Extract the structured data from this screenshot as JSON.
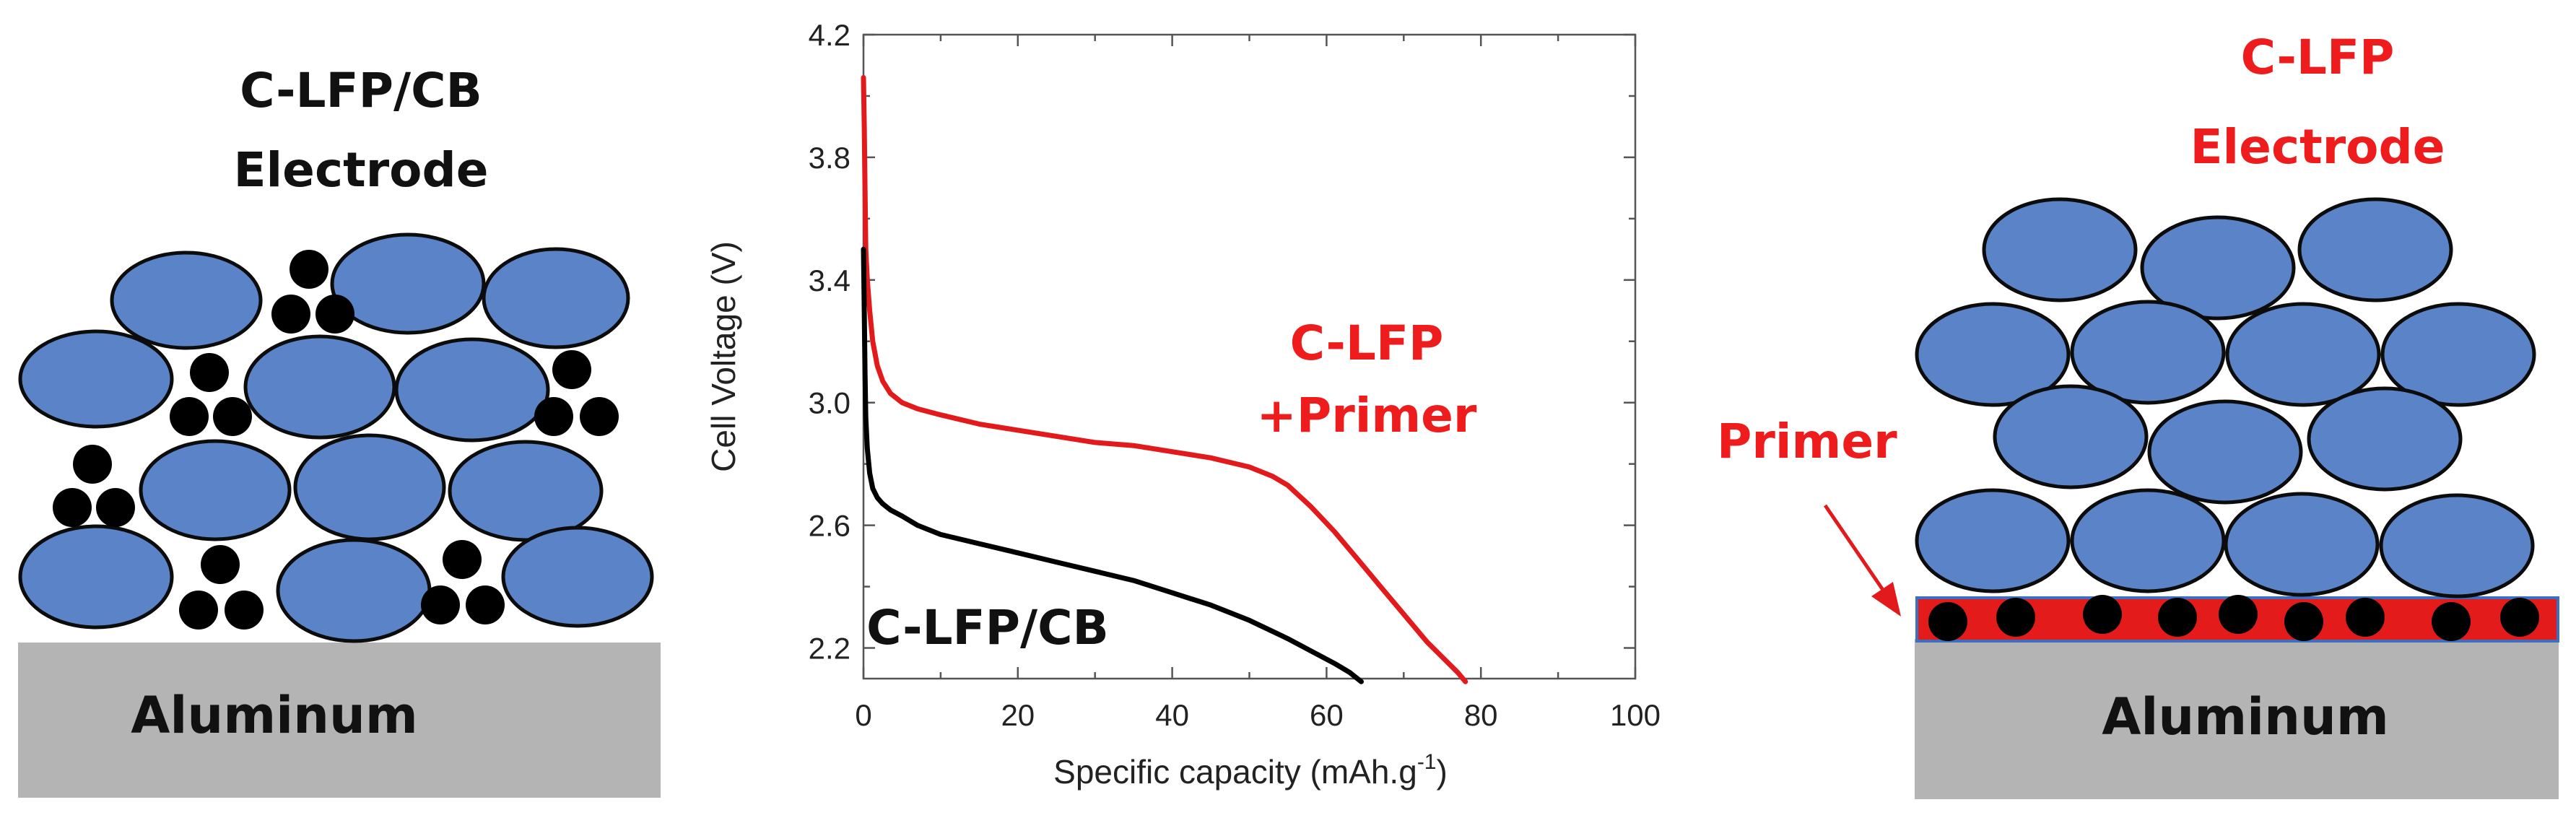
{
  "left_panel": {
    "title_line1": "C-LFP/CB",
    "title_line2": "Electrode",
    "substrate_label": "Aluminum"
  },
  "right_panel": {
    "title_line1": "C-LFP",
    "title_line2": "Electrode",
    "primer_label": "Primer",
    "substrate_label": "Aluminum"
  },
  "colors": {
    "particle_fill": "#5b84c8",
    "carbon_black": "#000000",
    "aluminum": "#b4b4b4",
    "primer": "#e41b1b",
    "series_red": "#e31a1c",
    "series_black": "#000000",
    "label_red": "#ee1c1c"
  },
  "chart_data": {
    "type": "line",
    "xlabel": "Specific capacity (mAh.g",
    "xlabel_sup": "-1",
    "xlabel_end": ")",
    "ylabel": "Cell Voltage (V)",
    "xlim": [
      0,
      100
    ],
    "ylim": [
      2.1,
      4.2
    ],
    "xticks": [
      0,
      20,
      40,
      60,
      80,
      100
    ],
    "yticks": [
      2.2,
      2.6,
      3.0,
      3.4,
      3.8,
      4.2
    ],
    "xtick_labels": [
      "0",
      "20",
      "40",
      "60",
      "80",
      "100"
    ],
    "ytick_labels": [
      "2.2",
      "2.6",
      "3.0",
      "3.4",
      "3.8",
      "4.2"
    ],
    "grid": false,
    "series": [
      {
        "name": "C-LFP +Primer",
        "label_line1": "C-LFP",
        "label_line2": "+Primer",
        "color": "#e31a1c",
        "x": [
          0,
          0.1,
          0.2,
          0.3,
          0.5,
          0.8,
          1.2,
          1.8,
          2.5,
          3.5,
          5,
          7,
          10,
          15,
          20,
          25,
          30,
          35,
          40,
          45,
          50,
          53,
          55,
          58,
          61,
          64,
          67,
          70,
          73,
          75,
          77,
          78
        ],
        "y": [
          4.06,
          3.9,
          3.7,
          3.5,
          3.4,
          3.3,
          3.2,
          3.12,
          3.07,
          3.03,
          3.0,
          2.98,
          2.96,
          2.93,
          2.91,
          2.89,
          2.87,
          2.86,
          2.84,
          2.82,
          2.79,
          2.76,
          2.73,
          2.66,
          2.58,
          2.49,
          2.4,
          2.31,
          2.22,
          2.17,
          2.12,
          2.09
        ]
      },
      {
        "name": "C-LFP/CB",
        "label_line1": "C-LFP/CB",
        "color": "#000000",
        "x": [
          0,
          0.1,
          0.2,
          0.3,
          0.5,
          0.8,
          1.2,
          1.8,
          2.5,
          3.5,
          5,
          7,
          10,
          15,
          20,
          25,
          30,
          35,
          40,
          45,
          50,
          55,
          58,
          61,
          63,
          64.5
        ],
        "y": [
          3.5,
          3.3,
          3.1,
          2.95,
          2.85,
          2.77,
          2.72,
          2.69,
          2.67,
          2.65,
          2.63,
          2.6,
          2.57,
          2.54,
          2.51,
          2.48,
          2.45,
          2.42,
          2.38,
          2.34,
          2.29,
          2.23,
          2.19,
          2.15,
          2.12,
          2.09
        ]
      }
    ]
  }
}
